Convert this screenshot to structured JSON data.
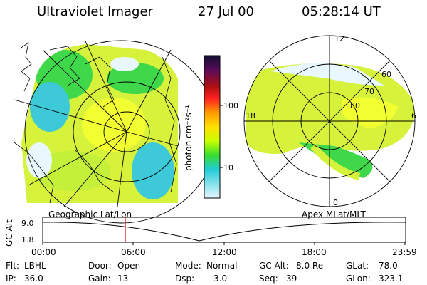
{
  "header": {
    "instrument": "Ultraviolet Imager",
    "date": "27 Jul 00",
    "time": "05:28:14 UT"
  },
  "panels": {
    "left_caption": "Geographic Lat/Lon",
    "right_caption": "Apex MLat/MLT"
  },
  "colorbar": {
    "unit_label": "photon cm⁻²s⁻¹",
    "ticks": [
      "100",
      "10"
    ],
    "colors": [
      "#101030",
      "#5a0a5a",
      "#b01010",
      "#ff2020",
      "#ff9a00",
      "#ffe000",
      "#c8ff00",
      "#36dd2e",
      "#22ccd8",
      "#e8f6ff"
    ]
  },
  "polar_plot": {
    "mlt_labels": [
      "12",
      "18",
      "6",
      "0"
    ],
    "mlat_labels": [
      "60",
      "70",
      "80"
    ]
  },
  "altitude_plot": {
    "ylabel": "GC Alt",
    "y_ticks": [
      "9.0",
      "1.8"
    ],
    "x_ticks": [
      "00:00",
      "06:00",
      "12:00",
      "18:00",
      "23:59"
    ],
    "current_time_marker": "05:28:14"
  },
  "info": {
    "row1": [
      {
        "label": "Flt:",
        "value": "LBHL"
      },
      {
        "label": "Door:",
        "value": "Open"
      },
      {
        "label": "Mode:",
        "value": "Normal"
      },
      {
        "label": "GC Alt:",
        "value": "8.0 Re"
      },
      {
        "label": "GLat:",
        "value": "78.0"
      }
    ],
    "row2": [
      {
        "label": "IP:",
        "value": "36.0"
      },
      {
        "label": "Gain:",
        "value": "13"
      },
      {
        "label": "Dsp:",
        "value": "3.0"
      },
      {
        "label": "Seq:",
        "value": "39"
      },
      {
        "label": "GLon:",
        "value": "323.1"
      }
    ]
  }
}
